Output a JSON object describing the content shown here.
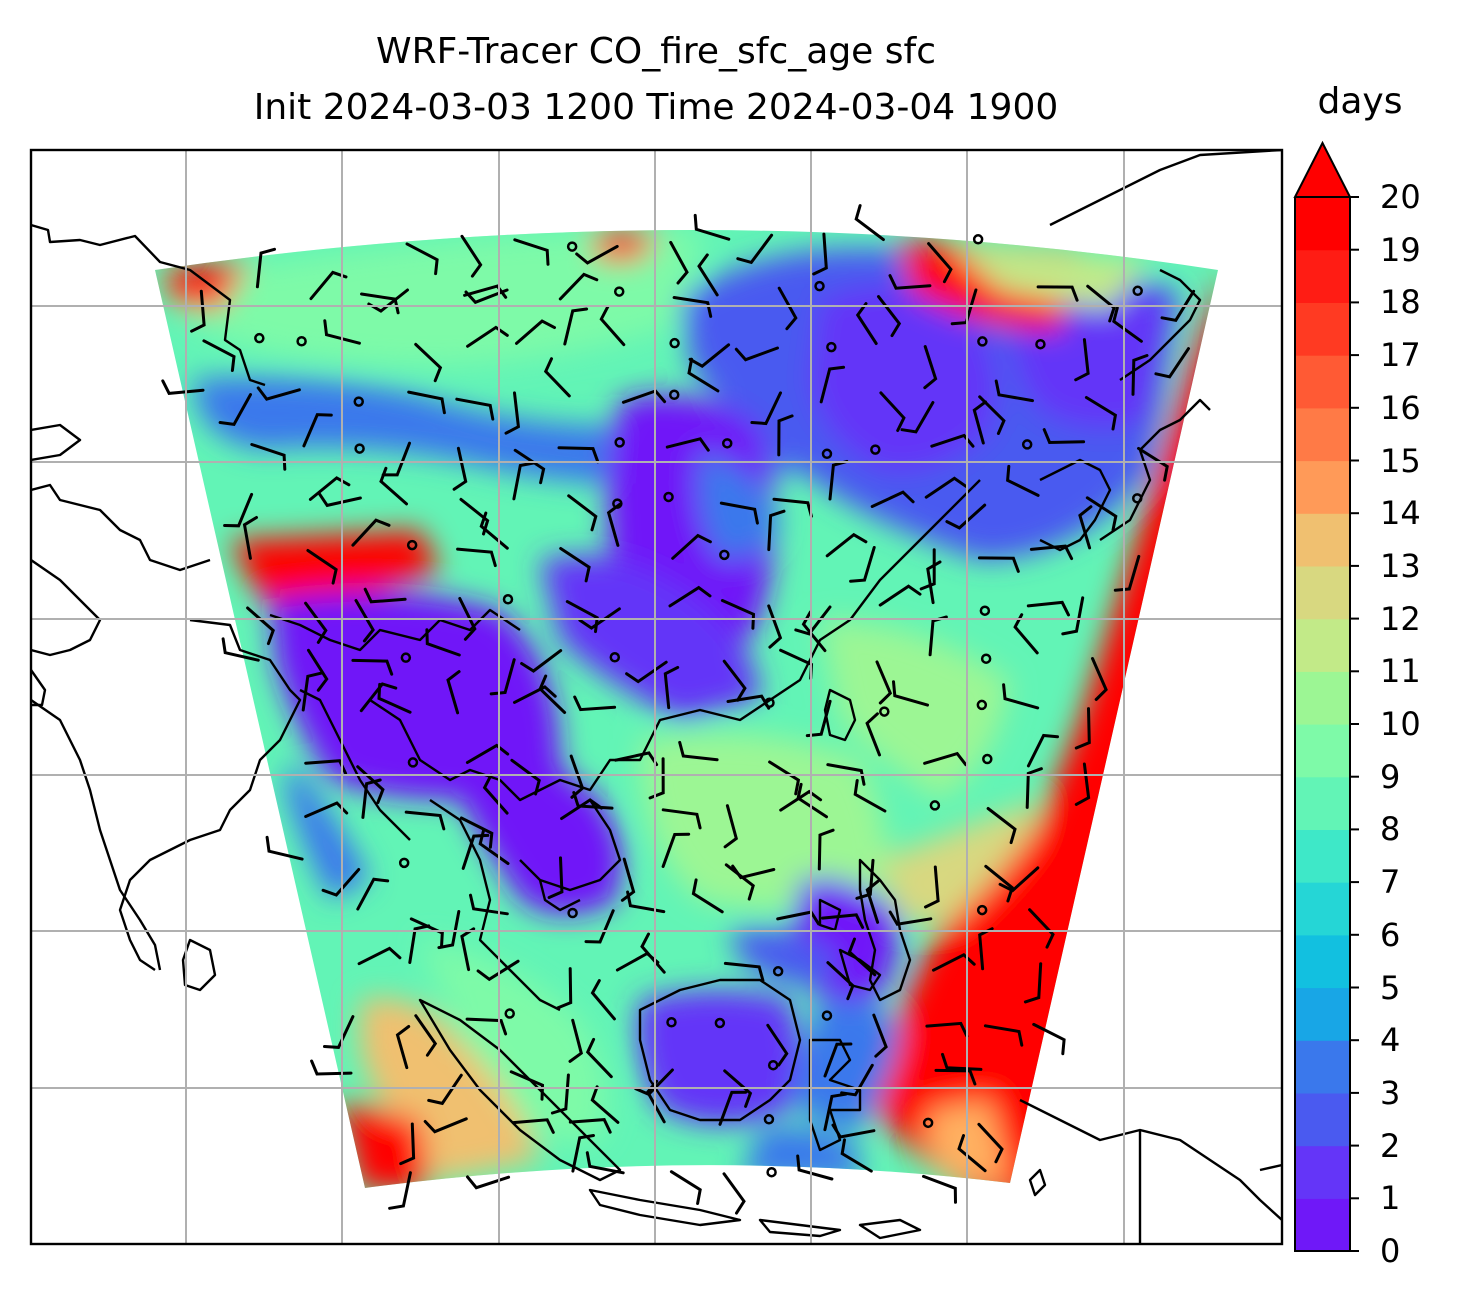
{
  "title": {
    "line1": "WRF-Tracer CO_fire_sfc_age sfc",
    "line2": "Init 2024-03-03 1200 Time 2024-03-04 1900"
  },
  "colorbar": {
    "unit": "days",
    "ticks": [
      "0",
      "1",
      "2",
      "3",
      "4",
      "5",
      "6",
      "7",
      "8",
      "9",
      "10",
      "11",
      "12",
      "13",
      "14",
      "15",
      "16",
      "17",
      "18",
      "19",
      "20"
    ],
    "extend": "max",
    "colors": [
      "#6f18f8",
      "#6435f8",
      "#4a5af0",
      "#3a78ec",
      "#18a6e6",
      "#12c0e0",
      "#25d6d6",
      "#3ee8c8",
      "#62f4b6",
      "#7efaa8",
      "#9cf694",
      "#c2ea88",
      "#d8d880",
      "#f0c070",
      "#ff9a58",
      "#ff7a46",
      "#ff5a34",
      "#ff3a22",
      "#ff1c14",
      "#ff0000"
    ],
    "overflow_color": "#ff0000"
  },
  "map": {
    "gridlines": true,
    "wind_barbs": true
  }
}
